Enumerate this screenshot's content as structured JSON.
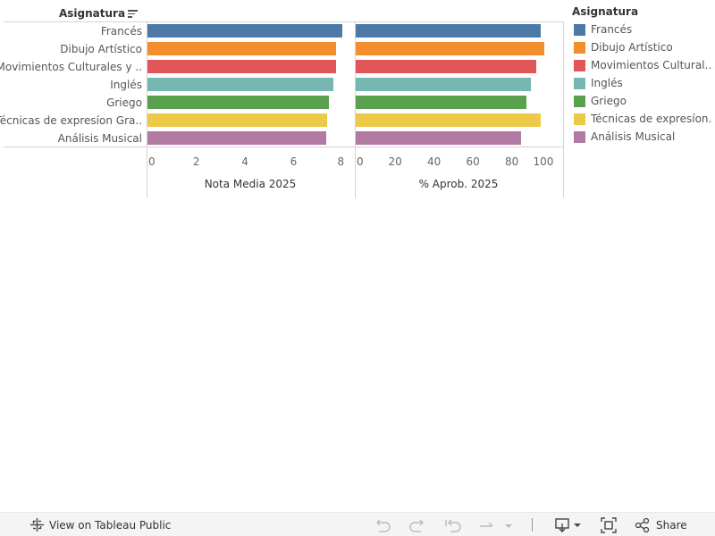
{
  "header": {
    "dimension_label": "Asignatura"
  },
  "legend": {
    "title": "Asignatura",
    "items": [
      {
        "label": "Francés",
        "color": "#4e79a7"
      },
      {
        "label": "Dibujo Artístico",
        "color": "#f28e2b"
      },
      {
        "label": "Movimientos Cultural…",
        "color": "#e15759"
      },
      {
        "label": "Inglés",
        "color": "#76b7b2"
      },
      {
        "label": "Griego",
        "color": "#59a14f"
      },
      {
        "label": "Técnicas de expresíon…",
        "color": "#edc948"
      },
      {
        "label": "Análisis Musical",
        "color": "#b07aa1"
      }
    ]
  },
  "chart_data": {
    "type": "bar",
    "orientation": "horizontal",
    "categories": [
      "Francés",
      "Dibujo Artístico",
      "Movimientos Culturales y ..",
      "Inglés",
      "Griego",
      "Técnicas de expresíon Gra..",
      "Análisis Musical"
    ],
    "colors": [
      "#4e79a7",
      "#f28e2b",
      "#e15759",
      "#76b7b2",
      "#59a14f",
      "#edc948",
      "#b07aa1"
    ],
    "panels": [
      {
        "xlabel": "Nota Media 2025",
        "xlim": [
          0,
          8.2
        ],
        "ticks": [
          "0",
          "2",
          "4",
          "6",
          "8"
        ],
        "tick_values": [
          0,
          2,
          4,
          6,
          8
        ],
        "values": [
          8.0,
          7.75,
          7.75,
          7.65,
          7.45,
          7.4,
          7.35
        ]
      },
      {
        "xlabel": "% Aprob. 2025",
        "xlim": [
          0,
          103
        ],
        "ticks": [
          "0",
          "20",
          "40",
          "60",
          "80",
          "100"
        ],
        "tick_values": [
          0,
          20,
          40,
          60,
          80,
          100
        ],
        "values": [
          95,
          97,
          93,
          90,
          88,
          95,
          85
        ]
      }
    ],
    "grid": false,
    "legend_position": "right"
  },
  "toolbar": {
    "view_label": "View on Tableau Public",
    "share_label": "Share"
  }
}
